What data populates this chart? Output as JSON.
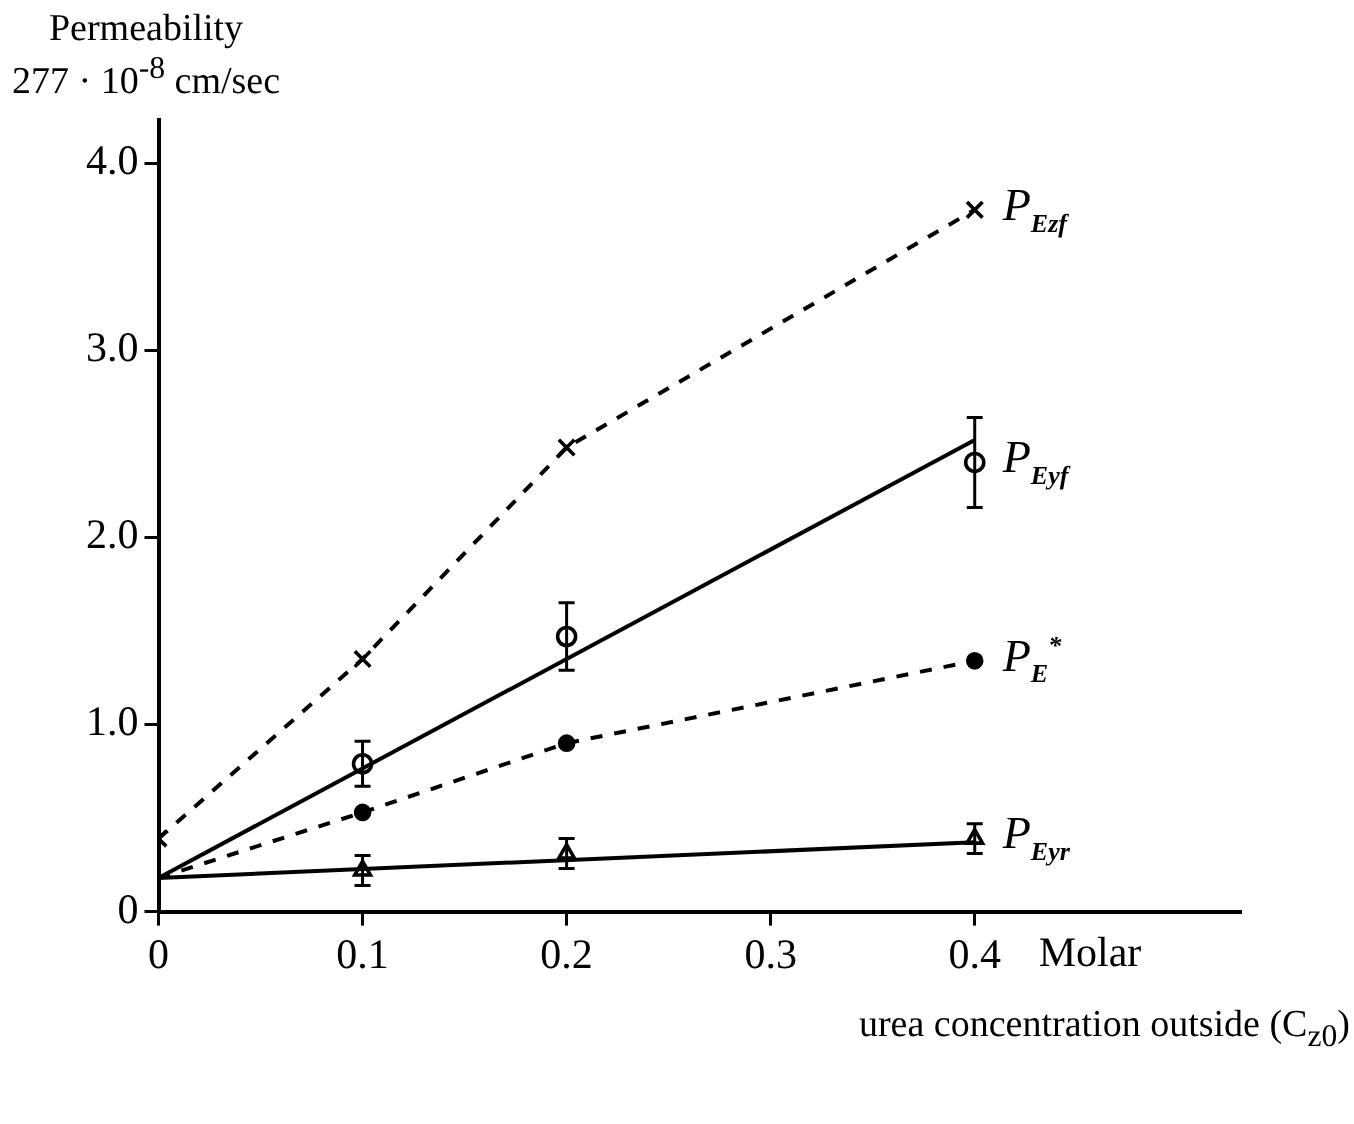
{
  "chart_data": {
    "type": "line",
    "ylabel": "Permeability\n277 · 10$^{-8}$ cm/sec",
    "xlabel": "urea concentration outside (C$_{z0}$)",
    "annotations": [
      "Molar"
    ],
    "xlim": [
      0,
      0.53
    ],
    "xticks": [
      0,
      0.1,
      0.2,
      0.3,
      0.4
    ],
    "ylim": [
      0,
      4.23
    ],
    "yticks": [
      0,
      {
        "value": 1,
        "label": "1.0"
      },
      {
        "value": 2,
        "label": "2.0"
      },
      {
        "value": 3,
        "label": "3.0"
      },
      {
        "value": 4,
        "label": "4.0"
      }
    ],
    "grid": false,
    "series": [
      {
        "name": "P$_{Ezf}$",
        "marker": "cross",
        "line_style": "dashed",
        "color": "#000000",
        "x": [
          0,
          0.1,
          0.2,
          0.4
        ],
        "values": [
          0.39,
          1.35,
          2.48,
          3.75
        ]
      },
      {
        "line_style": "solid",
        "color": "#000000",
        "x": [
          0,
          0.4
        ],
        "values": [
          0.18,
          2.52
        ]
      },
      {
        "name": "P$_{Eyf}$",
        "type": "scatter",
        "marker": "circle",
        "color": "#000000",
        "x": [
          0.1,
          0.2,
          0.4
        ],
        "values": [
          0.79,
          1.47,
          2.4
        ],
        "errors": [
          0.12,
          0.18,
          0.24
        ]
      },
      {
        "line_style": "dashed",
        "color": "#000000",
        "x": [
          0,
          0.1
        ],
        "values": [
          0.18,
          0.53
        ]
      },
      {
        "name": "P$_{E}$$^{*}$",
        "marker": "circle",
        "line_style": "dashed",
        "color": "#000000",
        "x": [
          0.1,
          0.2,
          0.4
        ],
        "values": [
          0.53,
          0.9,
          1.34
        ]
      },
      {
        "line_style": "solid",
        "color": "#000000",
        "x": [
          0,
          0.4
        ],
        "values": [
          0.18,
          0.37
        ]
      },
      {
        "name": "P$_{Eyr}$",
        "type": "scatter",
        "marker": "triangle",
        "color": "#000000",
        "x": [
          0.1,
          0.2,
          0.4
        ],
        "values": [
          0.22,
          0.31,
          0.39
        ],
        "errors": [
          0.08,
          0.08,
          0.08
        ]
      }
    ]
  }
}
